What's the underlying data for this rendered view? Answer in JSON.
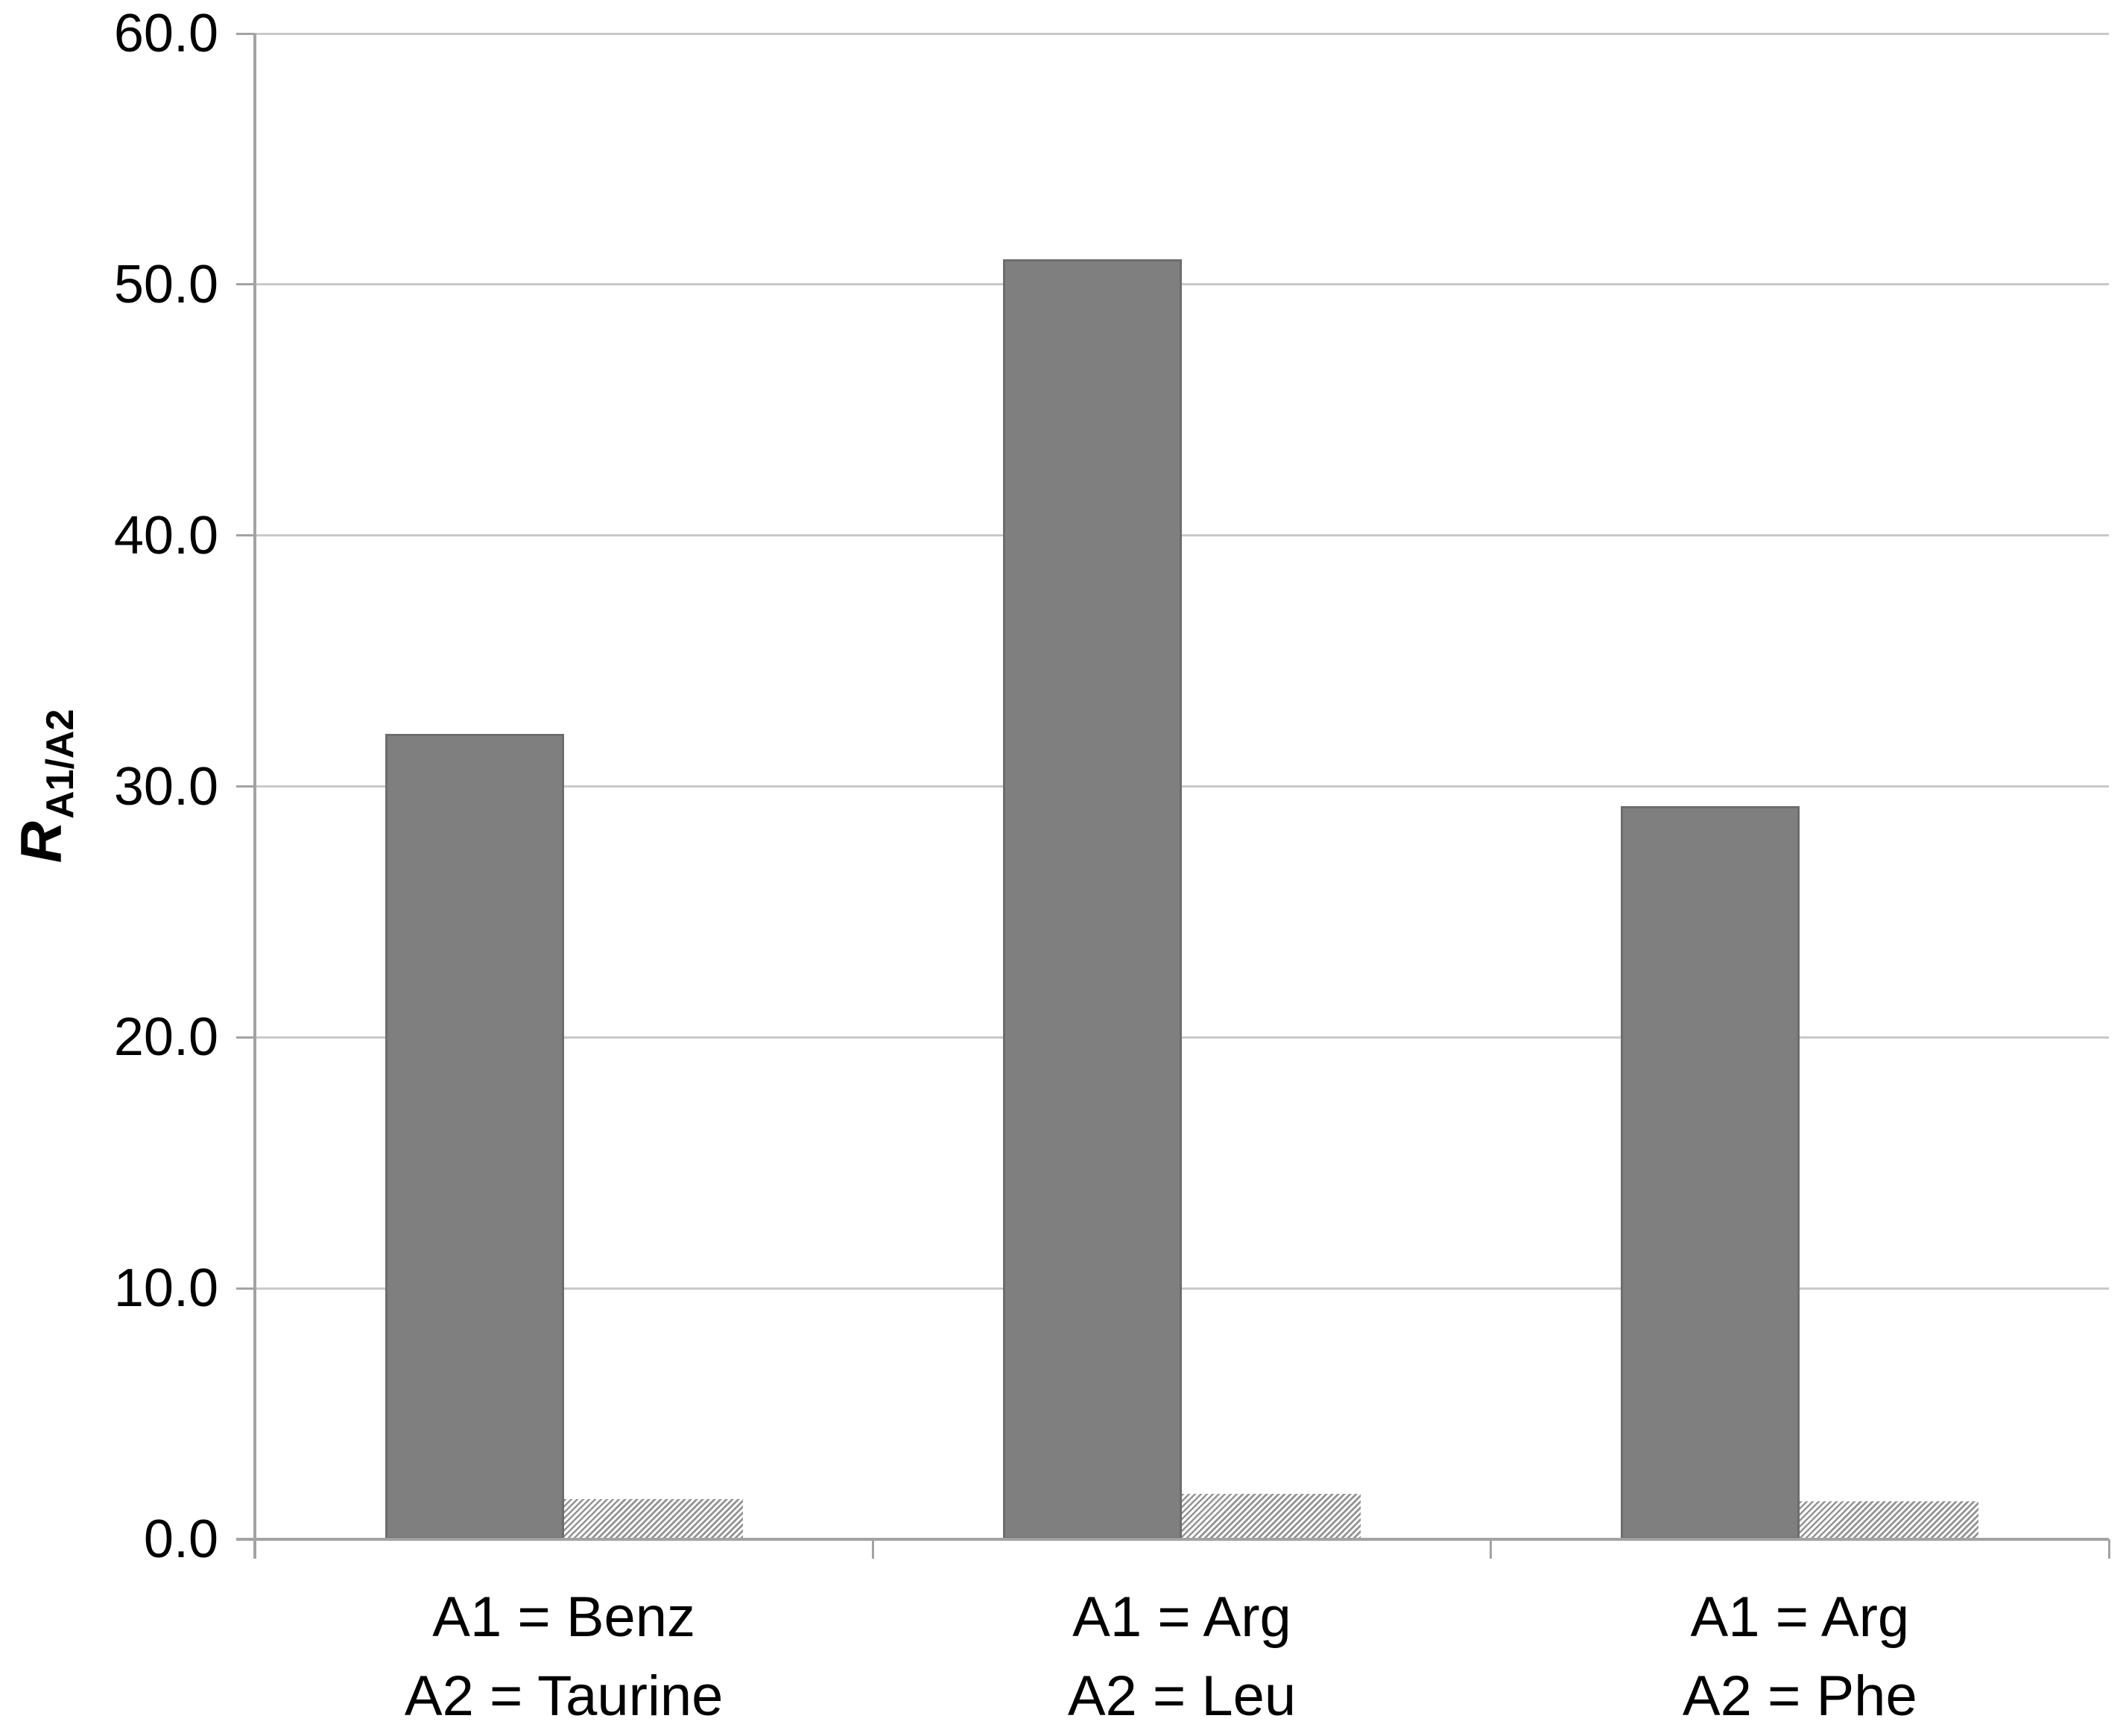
{
  "chart_data": {
    "type": "bar",
    "title": "",
    "ylabel_main": "R",
    "ylabel_sub": "A1/A2",
    "ylim": [
      0,
      60
    ],
    "ytick_step": 10,
    "yticks": [
      "0.0",
      "10.0",
      "20.0",
      "30.0",
      "40.0",
      "50.0",
      "60.0"
    ],
    "grid": "horizontal",
    "legend": "none",
    "categories": [
      {
        "line1": "A1 = Benz",
        "line2": "A2 = Taurine"
      },
      {
        "line1": "A1 = Arg",
        "line2": "A2 = Leu"
      },
      {
        "line1": "A1 = Arg",
        "line2": "A2 = Phe"
      }
    ],
    "series": [
      {
        "name": "solid-gray-bar",
        "pattern": "solid",
        "values": [
          32.1,
          51.0,
          29.2
        ]
      },
      {
        "name": "hatched-bar",
        "pattern": "diagonal-hatch",
        "values": [
          1.6,
          1.8,
          1.5
        ]
      }
    ],
    "colors": {
      "solid_bar": "#7f7f7f",
      "solid_bar_border": "#6d6d6d",
      "hatch_stripe": "#949494",
      "hatch_bg": "#ffffff",
      "gridline": "#c9c9c9",
      "axis": "#a3a3a3",
      "text": "#000000",
      "background": "#ffffff"
    }
  }
}
